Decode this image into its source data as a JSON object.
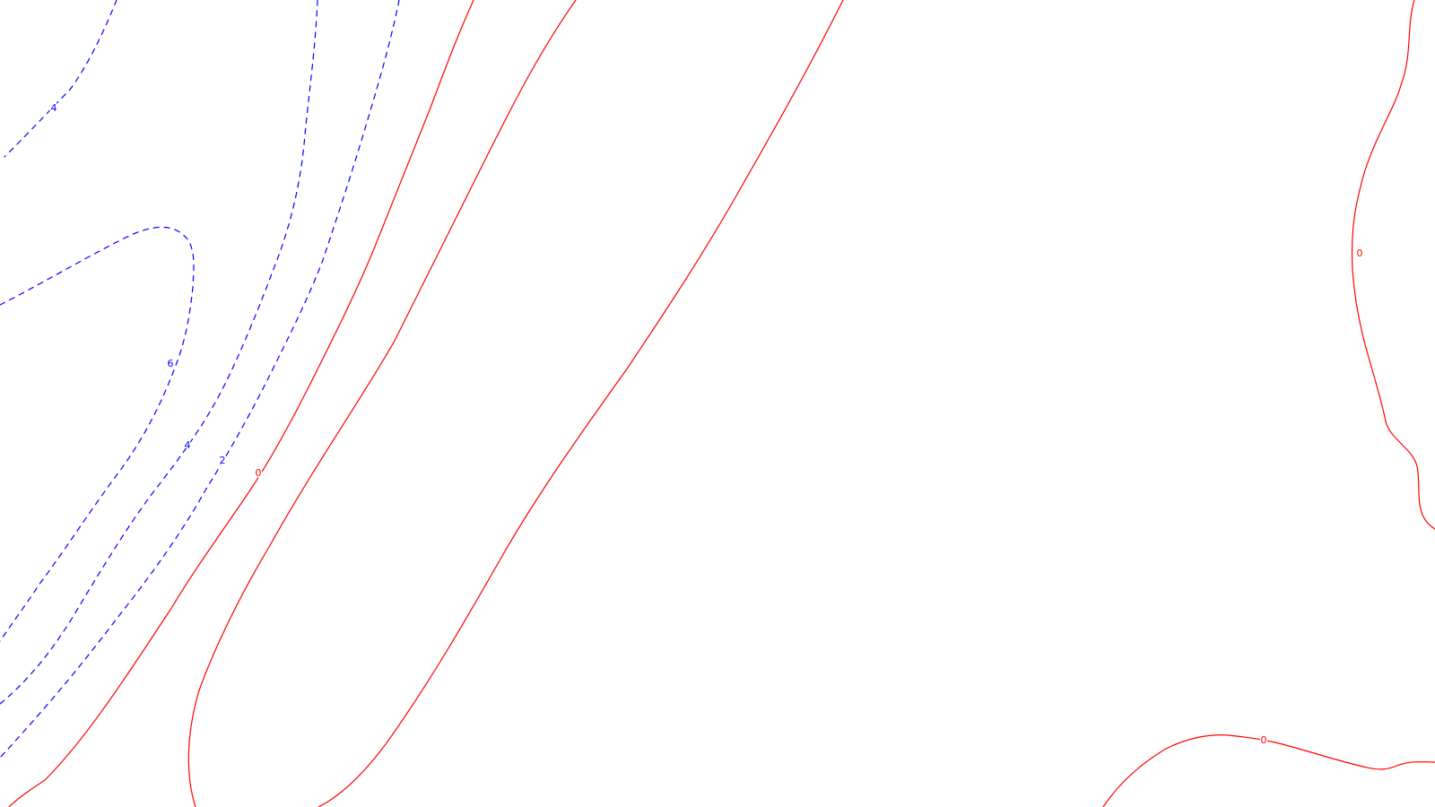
{
  "map": {
    "type": "contour-plot",
    "colors": {
      "negative": "#0000ff",
      "zero": "#ff0000",
      "background": "#ffffff"
    },
    "labels": {
      "neg_4_top": "4",
      "neg_6": "6",
      "neg_4_mid": "4",
      "neg_2": "2",
      "zero_left": "0",
      "zero_right": "0",
      "zero_bottom": "0"
    }
  }
}
